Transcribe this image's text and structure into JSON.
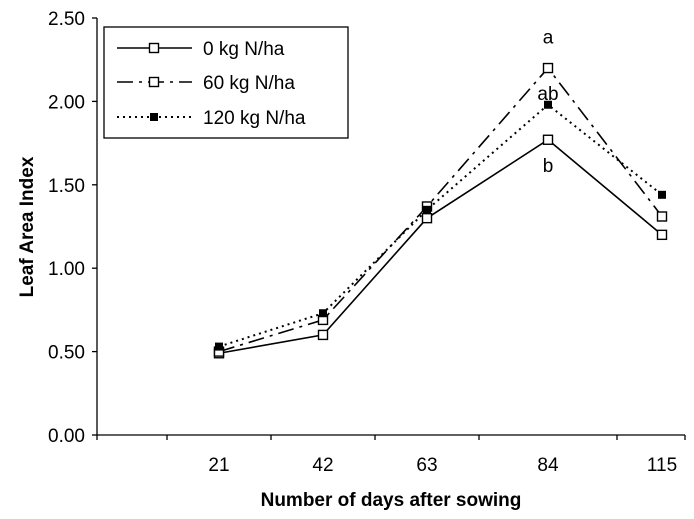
{
  "chart_data": {
    "type": "line",
    "xlabel": "Number of days after sowing",
    "ylabel": "Leaf Area Index",
    "categories": [
      "21",
      "42",
      "63",
      "84",
      "115"
    ],
    "ylim": [
      0,
      2.5
    ],
    "yticks": [
      "0.00",
      "0.50",
      "1.00",
      "1.50",
      "2.00",
      "2.50"
    ],
    "grid": false,
    "legend_position": "top-left",
    "series": [
      {
        "name": "0 kg N/ha",
        "values": [
          0.49,
          0.6,
          1.3,
          1.77,
          1.2
        ],
        "dash": "solid",
        "marker": "open-square"
      },
      {
        "name": "60 kg N/ha",
        "values": [
          0.5,
          0.69,
          1.37,
          2.2,
          1.31
        ],
        "dash": "dashdot",
        "marker": "open-square"
      },
      {
        "name": "120 kg N/ha",
        "values": [
          0.53,
          0.73,
          1.35,
          1.98,
          1.44
        ],
        "dash": "dotted",
        "marker": "filled-square"
      }
    ],
    "annotations": [
      {
        "text": "a",
        "x": "84",
        "y": 2.39
      },
      {
        "text": "ab",
        "x": "84",
        "y": 2.05
      },
      {
        "text": "b",
        "x": "84",
        "y": 1.62
      }
    ]
  }
}
